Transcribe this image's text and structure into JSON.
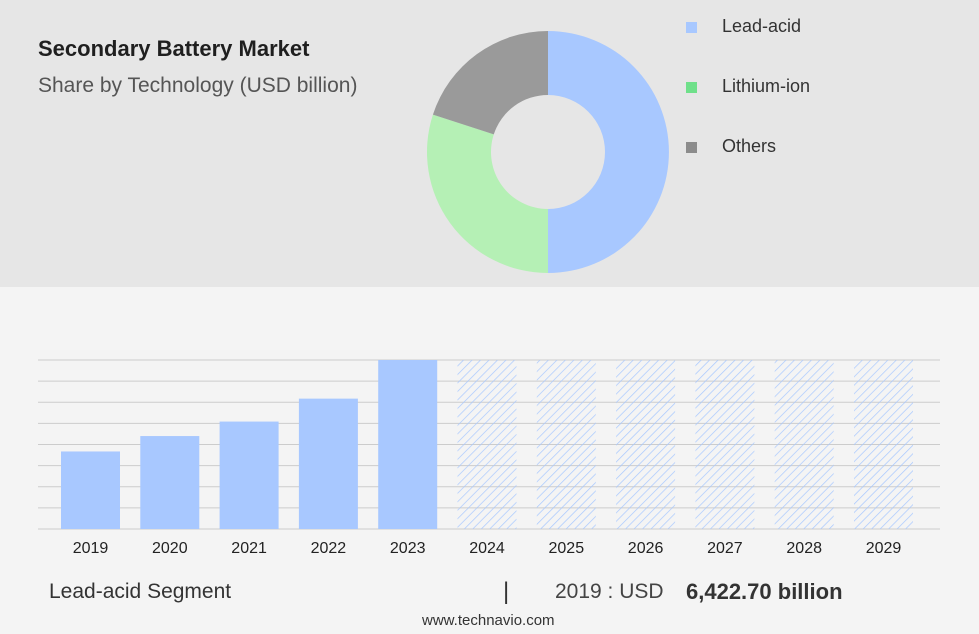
{
  "header": {
    "title": "Secondary Battery Market",
    "subtitle": "Share by Technology (USD billion)"
  },
  "colors": {
    "lead_acid": "#a8c8ff",
    "lithium_ion": "#b5f0b5",
    "others": "#9a9a9a",
    "legend_lithium": "#6fe08a",
    "forecast_hatch": "#a8c8ff"
  },
  "legend": [
    {
      "label": "Lead-acid",
      "color": "#a8c8ff"
    },
    {
      "label": "Lithium-ion",
      "color": "#6fe08a"
    },
    {
      "label": "Others",
      "color": "#8c8c8c"
    }
  ],
  "chart_data": [
    {
      "type": "pie",
      "variant": "donut",
      "categories": [
        "Lead-acid",
        "Lithium-ion",
        "Others"
      ],
      "values": [
        50,
        30,
        20
      ],
      "colors": [
        "#a8c8ff",
        "#b5f0b5",
        "#9a9a9a"
      ]
    },
    {
      "type": "bar",
      "categories": [
        "2019",
        "2020",
        "2021",
        "2022",
        "2023",
        "2024",
        "2025",
        "2026",
        "2027",
        "2028",
        "2029"
      ],
      "values": [
        6422.7,
        7700,
        8900,
        10800,
        14000,
        null,
        null,
        null,
        null,
        null,
        null
      ],
      "forecast": [
        false,
        false,
        false,
        false,
        false,
        true,
        true,
        true,
        true,
        true,
        true
      ],
      "grid": true,
      "color": "#a8c8ff"
    }
  ],
  "footer": {
    "segment_label": "Lead-acid Segment",
    "separator": "|",
    "year_text": "2019 : USD",
    "value_text": "6,422.70 billion",
    "source": "www.technavio.com"
  }
}
